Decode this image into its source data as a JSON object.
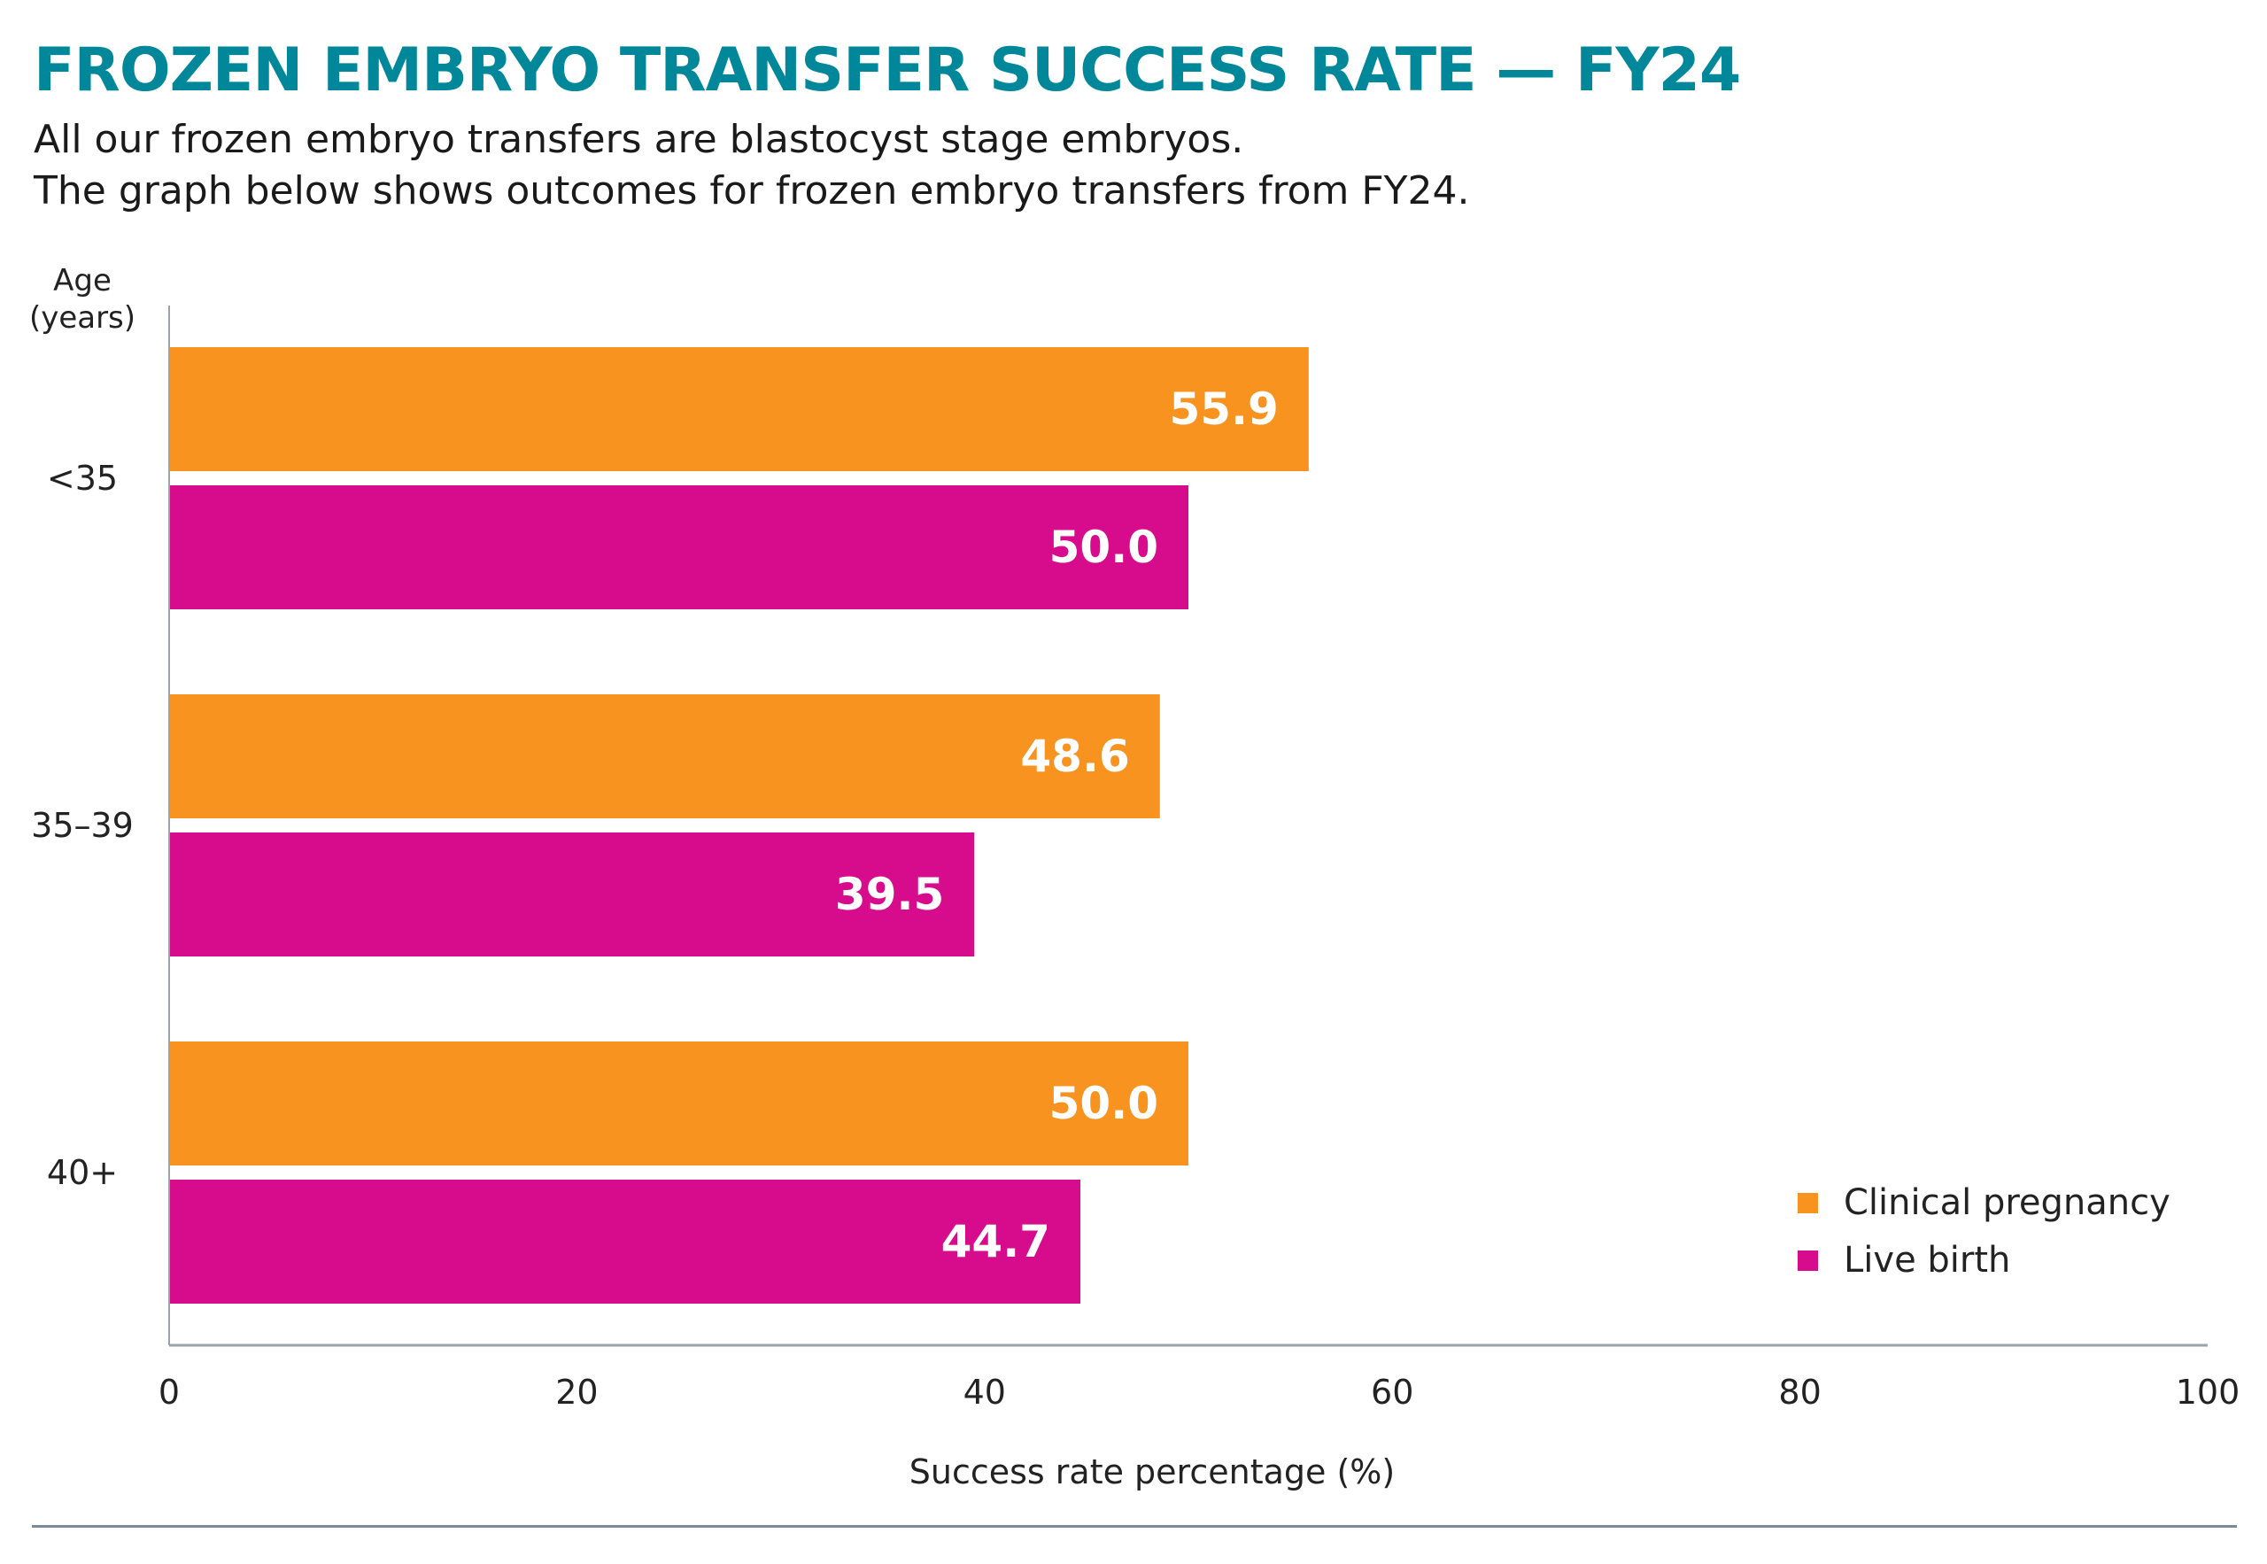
{
  "header": {
    "title": "FROZEN EMBRYO TRANSFER SUCCESS RATE — FY24",
    "subtitle_lines": [
      "All our frozen embryo transfers are blastocyst stage embryos.",
      "The graph below shows outcomes for frozen embryo transfers from FY24."
    ]
  },
  "chart_data": {
    "type": "bar",
    "orientation": "horizontal",
    "title": "FROZEN EMBRYO TRANSFER SUCCESS RATE — FY24",
    "ylabel_lines": [
      "Age",
      "(years)"
    ],
    "xlabel": "Success rate percentage (%)",
    "categories": [
      "<35",
      "35–39",
      "40+"
    ],
    "series": [
      {
        "name": "Clinical pregnancy",
        "color": "#f7931e",
        "values": [
          55.9,
          48.6,
          50.0
        ],
        "labels": [
          "55.9",
          "48.6",
          "50.0"
        ]
      },
      {
        "name": "Live birth",
        "color": "#d70c8c",
        "values": [
          50.0,
          39.5,
          44.7
        ],
        "labels": [
          "50.0",
          "39.5",
          "44.7"
        ]
      }
    ],
    "xlim": [
      0,
      100
    ],
    "xticks": [
      0,
      20,
      40,
      60,
      80,
      100
    ],
    "grid": false,
    "legend_position": "bottom-right"
  }
}
